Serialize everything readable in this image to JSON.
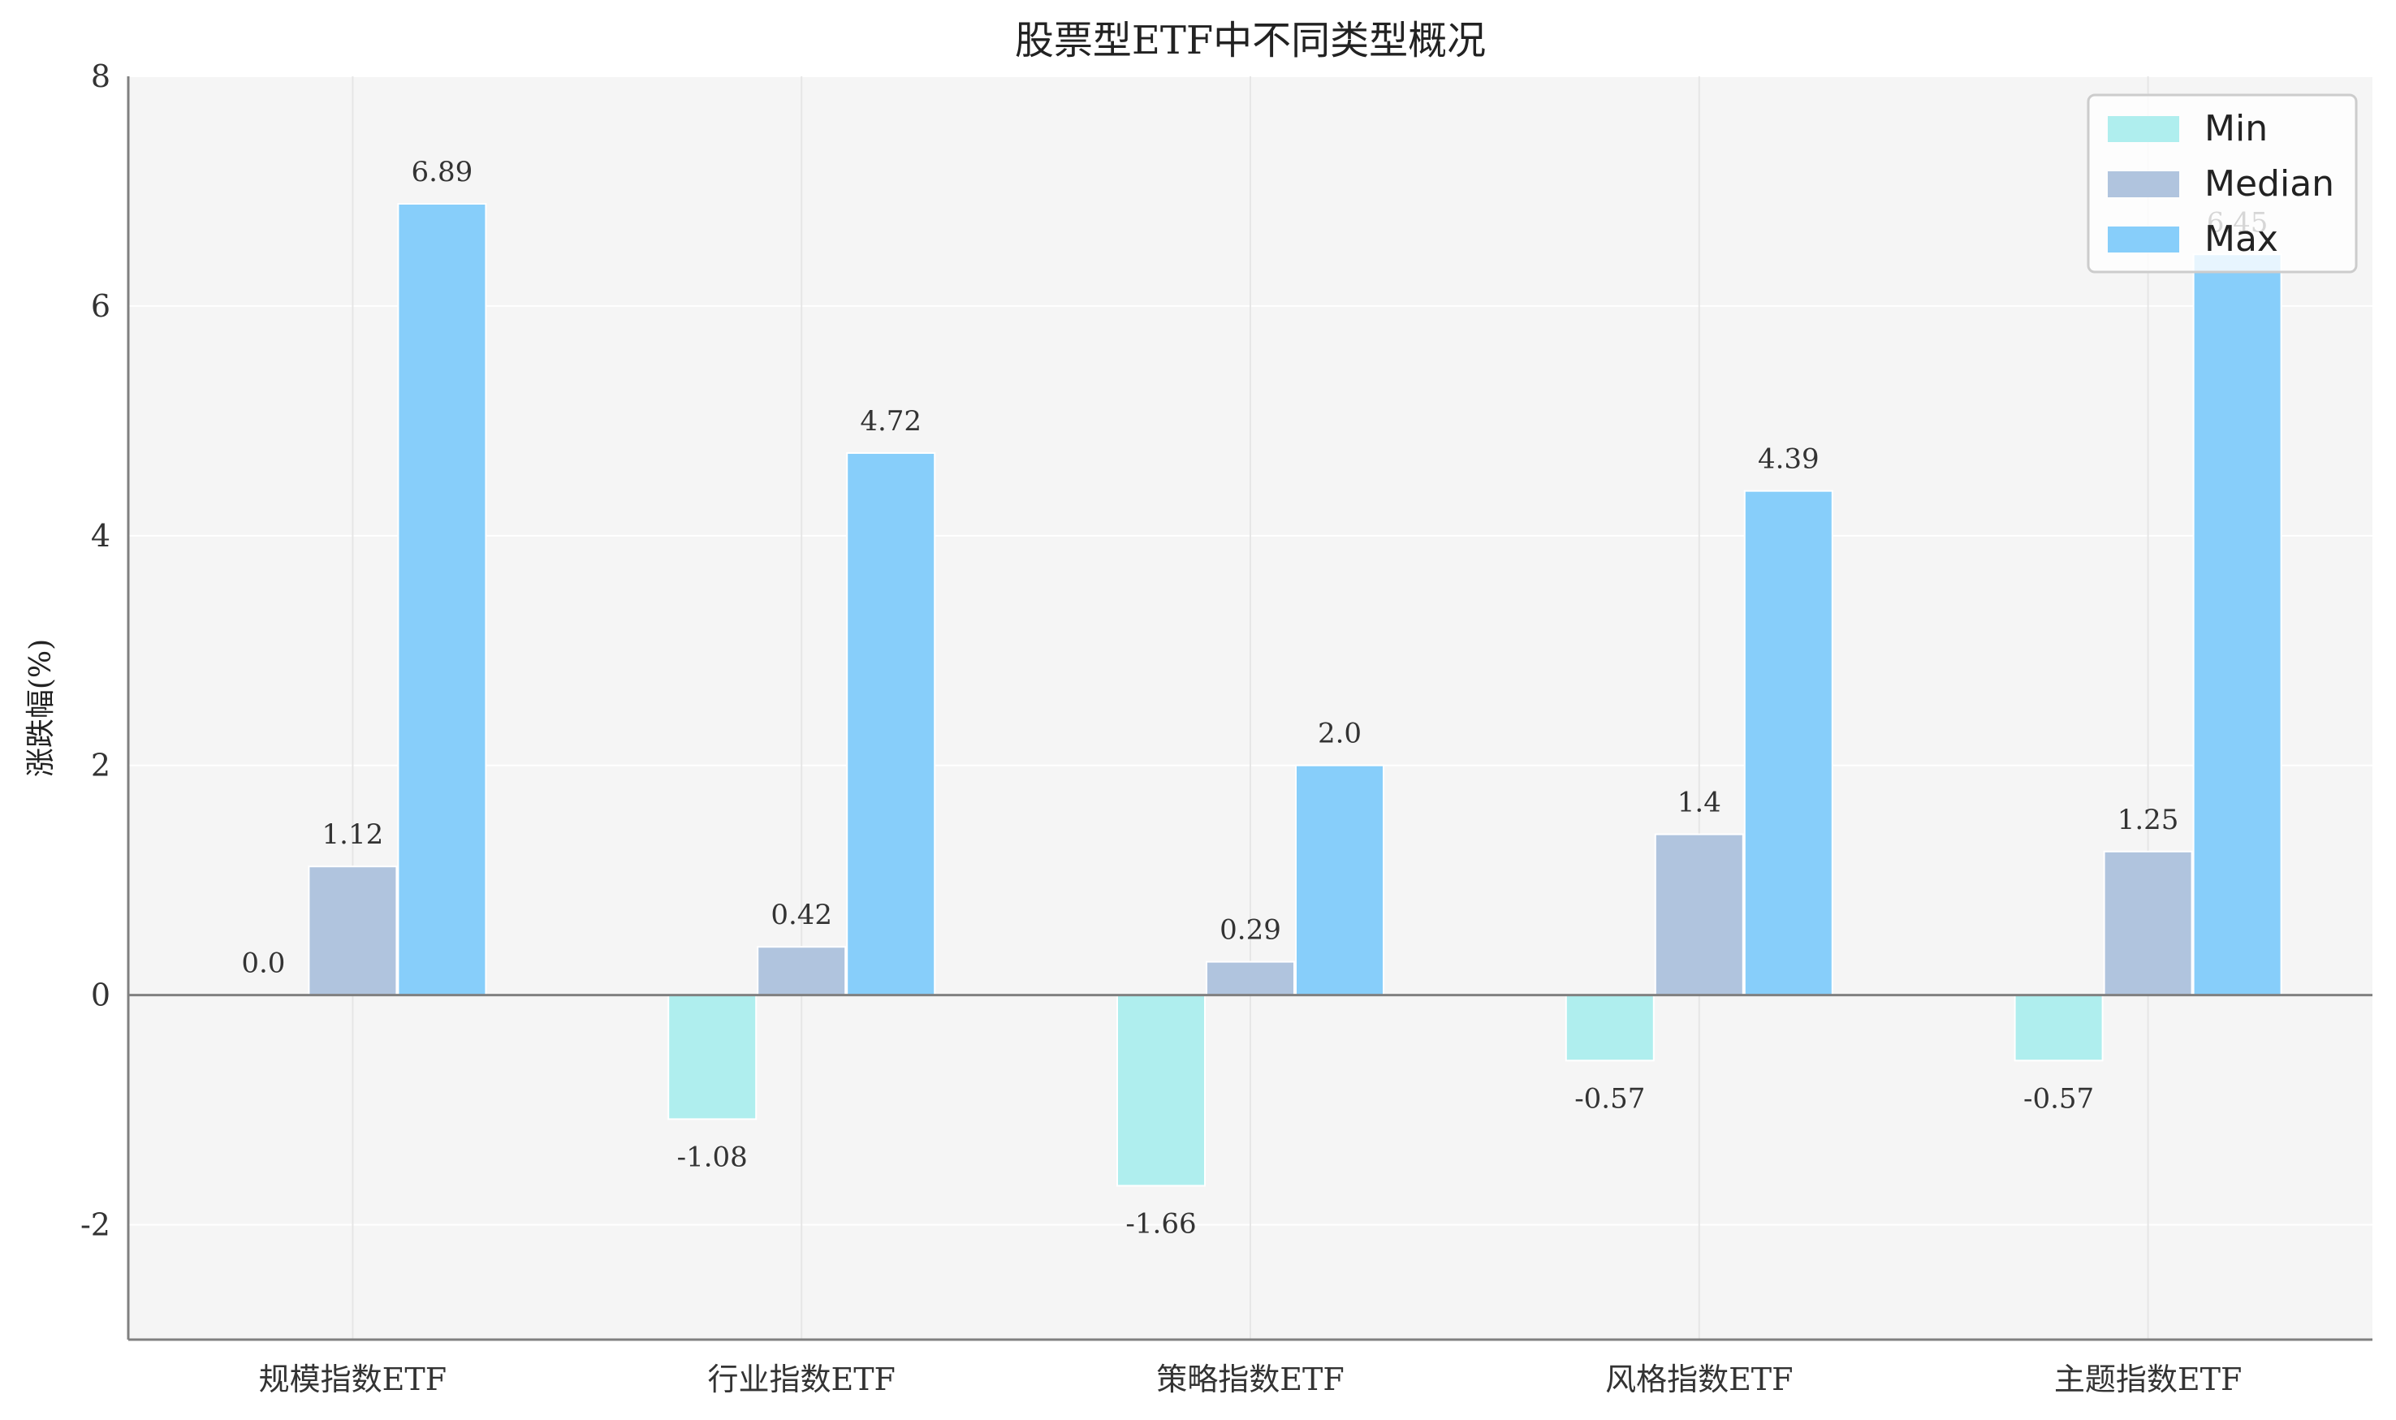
{
  "chart_data": {
    "type": "bar",
    "title": "股票型ETF中不同类型概况",
    "xlabel": "",
    "ylabel": "涨跌幅(%)",
    "ylim": [
      -3,
      8
    ],
    "yticks": [
      -2,
      0,
      2,
      4,
      6,
      8
    ],
    "ytick_labels": [
      "-2",
      "0",
      "2",
      "4",
      "6",
      "8"
    ],
    "grid": true,
    "legend_position": "top-right",
    "categories": [
      "规模指数ETF",
      "行业指数ETF",
      "策略指数ETF",
      "风格指数ETF",
      "主题指数ETF"
    ],
    "series": [
      {
        "name": "Min",
        "color": "#AFEEEE",
        "values": [
          0.0,
          -1.08,
          -1.66,
          -0.57,
          -0.57
        ],
        "labels": [
          "0.0",
          "-1.08",
          "-1.66",
          "-0.57",
          "-0.57"
        ]
      },
      {
        "name": "Median",
        "color": "#B0C4DE",
        "values": [
          1.12,
          0.42,
          0.29,
          1.4,
          1.25
        ],
        "labels": [
          "1.12",
          "0.42",
          "0.29",
          "1.4",
          "1.25"
        ]
      },
      {
        "name": "Max",
        "color": "#87CEFA",
        "values": [
          6.89,
          4.72,
          2.0,
          4.39,
          6.45
        ],
        "labels": [
          "6.89",
          "4.72",
          "2.0",
          "4.39",
          "6.45"
        ]
      }
    ]
  }
}
